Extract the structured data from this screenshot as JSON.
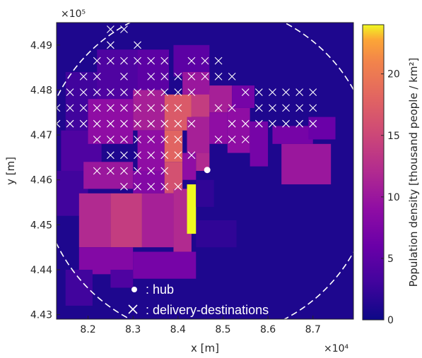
{
  "chart_data": {
    "type": "heatmap",
    "title": "",
    "xlabel": "x [m]",
    "ylabel": "y [m]",
    "x_exponent": "×10⁴",
    "y_exponent": "×10⁵",
    "xlim": [
      8.13,
      8.79
    ],
    "ylim": [
      4.429,
      4.495
    ],
    "x_ticks": [
      {
        "value": 8.2,
        "label": "8.2"
      },
      {
        "value": 8.3,
        "label": "8.3"
      },
      {
        "value": 8.4,
        "label": "8.4"
      },
      {
        "value": 8.5,
        "label": "8.5"
      },
      {
        "value": 8.6,
        "label": "8.6"
      },
      {
        "value": 8.7,
        "label": "8.7"
      }
    ],
    "y_ticks": [
      {
        "value": 4.43,
        "label": "4.43"
      },
      {
        "value": 4.44,
        "label": "4.44"
      },
      {
        "value": 4.45,
        "label": "4.45"
      },
      {
        "value": 4.46,
        "label": "4.46"
      },
      {
        "value": 4.47,
        "label": "4.47"
      },
      {
        "value": 4.48,
        "label": "4.48"
      },
      {
        "value": 4.49,
        "label": "4.49"
      }
    ],
    "colorbar": {
      "label": "Population density [thousand people / km²]",
      "range": [
        0,
        24
      ],
      "ticks": [
        {
          "value": 0,
          "label": "0"
        },
        {
          "value": 5,
          "label": "5"
        },
        {
          "value": 10,
          "label": "10"
        },
        {
          "value": 15,
          "label": "15"
        },
        {
          "value": 20,
          "label": "20"
        }
      ],
      "colormap": "plasma"
    },
    "background_density": 1,
    "hub": {
      "x": 8.465,
      "y": 4.4622
    },
    "service_circle": {
      "cx": 8.465,
      "cy": 4.462,
      "r": 0.372
    },
    "regions": [
      {
        "x0": 8.15,
        "x1": 8.23,
        "y0": 4.471,
        "y1": 4.484,
        "v": 3
      },
      {
        "x0": 8.22,
        "x1": 8.31,
        "y0": 4.478,
        "y1": 4.489,
        "v": 4
      },
      {
        "x0": 8.31,
        "x1": 8.38,
        "y0": 4.48,
        "y1": 4.489,
        "v": 5
      },
      {
        "x0": 8.39,
        "x1": 8.47,
        "y0": 4.483,
        "y1": 4.49,
        "v": 5
      },
      {
        "x0": 8.14,
        "x1": 8.23,
        "y0": 4.462,
        "y1": 4.471,
        "v": 4
      },
      {
        "x0": 8.13,
        "x1": 8.2,
        "y0": 4.452,
        "y1": 4.462,
        "v": 3
      },
      {
        "x0": 8.2,
        "x1": 8.3,
        "y0": 4.468,
        "y1": 4.478,
        "v": 9
      },
      {
        "x0": 8.3,
        "x1": 8.37,
        "y0": 4.471,
        "y1": 4.48,
        "v": 11
      },
      {
        "x0": 8.37,
        "x1": 8.43,
        "y0": 4.471,
        "y1": 4.479,
        "v": 17
      },
      {
        "x0": 8.43,
        "x1": 8.47,
        "y0": 4.474,
        "y1": 4.48,
        "v": 14
      },
      {
        "x0": 8.41,
        "x1": 8.47,
        "y0": 4.479,
        "y1": 4.484,
        "v": 10
      },
      {
        "x0": 8.47,
        "x1": 8.52,
        "y0": 4.475,
        "y1": 4.481,
        "v": 11
      },
      {
        "x0": 8.52,
        "x1": 8.57,
        "y0": 4.476,
        "y1": 4.481,
        "v": 7
      },
      {
        "x0": 8.31,
        "x1": 8.37,
        "y0": 4.462,
        "y1": 4.471,
        "v": 9
      },
      {
        "x0": 8.37,
        "x1": 8.41,
        "y0": 4.464,
        "y1": 4.471,
        "v": 18
      },
      {
        "x0": 8.42,
        "x1": 8.47,
        "y0": 4.466,
        "y1": 4.474,
        "v": 11
      },
      {
        "x0": 8.47,
        "x1": 8.51,
        "y0": 4.468,
        "y1": 4.475,
        "v": 9
      },
      {
        "x0": 8.51,
        "x1": 8.56,
        "y0": 4.466,
        "y1": 4.476,
        "v": 9
      },
      {
        "x0": 8.56,
        "x1": 8.6,
        "y0": 4.463,
        "y1": 4.473,
        "v": 7
      },
      {
        "x0": 8.61,
        "x1": 8.7,
        "y0": 4.468,
        "y1": 4.472,
        "v": 7
      },
      {
        "x0": 8.69,
        "x1": 8.75,
        "y0": 4.469,
        "y1": 4.474,
        "v": 6
      },
      {
        "x0": 8.63,
        "x1": 8.74,
        "y0": 4.459,
        "y1": 4.468,
        "v": 10
      },
      {
        "x0": 8.19,
        "x1": 8.3,
        "y0": 4.458,
        "y1": 4.464,
        "v": 10
      },
      {
        "x0": 8.3,
        "x1": 8.37,
        "y0": 4.457,
        "y1": 4.462,
        "v": 8
      },
      {
        "x0": 8.37,
        "x1": 8.41,
        "y0": 4.457,
        "y1": 4.464,
        "v": 16
      },
      {
        "x0": 8.41,
        "x1": 8.44,
        "y0": 4.46,
        "y1": 4.466,
        "v": 9
      },
      {
        "x0": 8.44,
        "x1": 8.47,
        "y0": 4.462,
        "y1": 4.466,
        "v": 12
      },
      {
        "x0": 8.18,
        "x1": 8.25,
        "y0": 4.445,
        "y1": 4.457,
        "v": 12
      },
      {
        "x0": 8.25,
        "x1": 8.32,
        "y0": 4.445,
        "y1": 4.457,
        "v": 14
      },
      {
        "x0": 8.32,
        "x1": 8.39,
        "y0": 4.445,
        "y1": 4.457,
        "v": 11
      },
      {
        "x0": 8.39,
        "x1": 8.43,
        "y0": 4.444,
        "y1": 4.458,
        "v": 12
      },
      {
        "x0": 8.18,
        "x1": 8.3,
        "y0": 4.439,
        "y1": 4.445,
        "v": 8
      },
      {
        "x0": 8.3,
        "x1": 8.44,
        "y0": 4.438,
        "y1": 4.444,
        "v": 7
      },
      {
        "x0": 8.15,
        "x1": 8.21,
        "y0": 4.432,
        "y1": 4.44,
        "v": 3
      },
      {
        "x0": 8.25,
        "x1": 8.3,
        "y0": 4.436,
        "y1": 4.44,
        "v": 4
      },
      {
        "x0": 8.44,
        "x1": 8.53,
        "y0": 4.445,
        "y1": 4.451,
        "v": 2
      },
      {
        "x0": 8.42,
        "x1": 8.44,
        "y0": 4.448,
        "y1": 4.459,
        "v": 24
      },
      {
        "x0": 8.44,
        "x1": 8.48,
        "y0": 4.454,
        "y1": 4.46,
        "v": 2
      }
    ],
    "markers": {
      "name": "delivery-destinations",
      "x": [
        8.25,
        8.28,
        8.25,
        8.31,
        8.22,
        8.25,
        8.28,
        8.31,
        8.34,
        8.37,
        8.43,
        8.46,
        8.49,
        8.19,
        8.22,
        8.28,
        8.34,
        8.37,
        8.4,
        8.43,
        8.46,
        8.49,
        8.52,
        8.16,
        8.19,
        8.22,
        8.25,
        8.28,
        8.31,
        8.34,
        8.37,
        8.4,
        8.43,
        8.55,
        8.58,
        8.61,
        8.64,
        8.67,
        8.7,
        8.13,
        8.16,
        8.19,
        8.22,
        8.25,
        8.28,
        8.31,
        8.34,
        8.37,
        8.4,
        8.49,
        8.52,
        8.58,
        8.61,
        8.64,
        8.67,
        8.7,
        8.13,
        8.16,
        8.19,
        8.22,
        8.25,
        8.28,
        8.31,
        8.34,
        8.37,
        8.4,
        8.43,
        8.52,
        8.55,
        8.58,
        8.61,
        8.64,
        8.67,
        8.7,
        8.22,
        8.25,
        8.28,
        8.31,
        8.34,
        8.37,
        8.4,
        8.49,
        8.52,
        8.55,
        8.25,
        8.28,
        8.31,
        8.34,
        8.37,
        8.4,
        8.43,
        8.22,
        8.25,
        8.28,
        8.31,
        8.34,
        8.37,
        8.28,
        8.31,
        8.34,
        8.37,
        8.4
      ],
      "y": [
        4.4935,
        4.4935,
        4.49,
        4.49,
        4.4865,
        4.4865,
        4.4865,
        4.4865,
        4.4865,
        4.4865,
        4.4865,
        4.4865,
        4.4865,
        4.483,
        4.483,
        4.483,
        4.483,
        4.483,
        4.483,
        4.483,
        4.483,
        4.483,
        4.483,
        4.4795,
        4.4795,
        4.4795,
        4.4795,
        4.4795,
        4.4795,
        4.4795,
        4.4795,
        4.4795,
        4.4795,
        4.4795,
        4.4795,
        4.4795,
        4.4795,
        4.4795,
        4.4795,
        4.476,
        4.476,
        4.476,
        4.476,
        4.476,
        4.476,
        4.476,
        4.476,
        4.476,
        4.476,
        4.476,
        4.476,
        4.476,
        4.476,
        4.476,
        4.476,
        4.476,
        4.4725,
        4.4725,
        4.4725,
        4.4725,
        4.4725,
        4.4725,
        4.4725,
        4.4725,
        4.4725,
        4.4725,
        4.4725,
        4.4725,
        4.4725,
        4.4725,
        4.4725,
        4.4725,
        4.4725,
        4.4725,
        4.469,
        4.469,
        4.469,
        4.469,
        4.469,
        4.469,
        4.469,
        4.469,
        4.469,
        4.469,
        4.4655,
        4.4655,
        4.4655,
        4.4655,
        4.4655,
        4.4655,
        4.4655,
        4.462,
        4.462,
        4.462,
        4.462,
        4.462,
        4.462,
        4.4585,
        4.4585,
        4.4585,
        4.4585,
        4.4585
      ]
    },
    "legend": {
      "placement": "bottom-left",
      "hub_label": ": hub",
      "dest_label": ": delivery-destinations"
    }
  }
}
